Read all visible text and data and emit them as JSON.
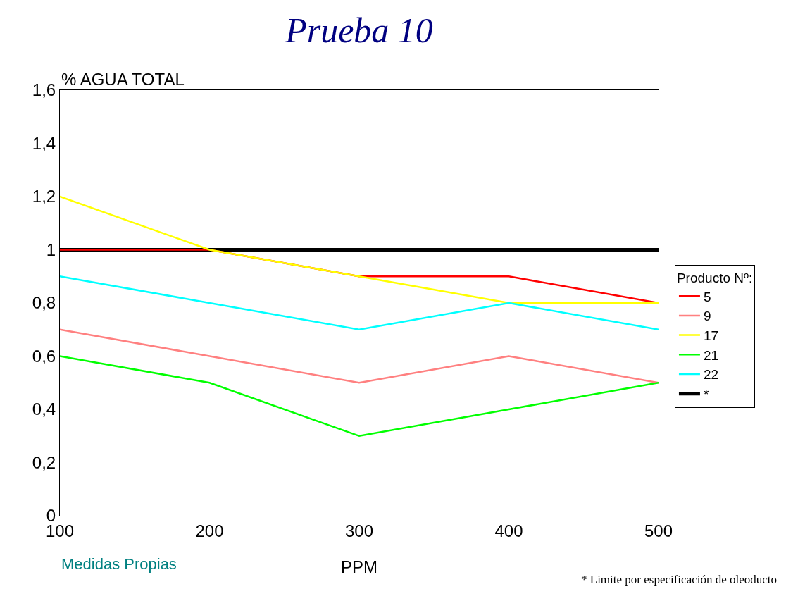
{
  "chart_data": {
    "type": "line",
    "title": "Prueba 10",
    "xlabel": "PPM",
    "ylabel": "% AGUA TOTAL",
    "legend_title": "Producto Nº:",
    "x": [
      100,
      200,
      300,
      400,
      500
    ],
    "series": [
      {
        "name": "5",
        "color": "#ff0000",
        "values": [
          1,
          1,
          0.9,
          0.9,
          0.8
        ]
      },
      {
        "name": "9",
        "color": "#ff8080",
        "values": [
          0.7,
          0.6,
          0.5,
          0.6,
          0.5
        ]
      },
      {
        "name": "17",
        "color": "#ffff00",
        "values": [
          1.2,
          1,
          0.9,
          0.8,
          0.8
        ]
      },
      {
        "name": "21",
        "color": "#00ff00",
        "values": [
          0.6,
          0.5,
          0.3,
          0.4,
          0.5
        ]
      },
      {
        "name": "22",
        "color": "#00ffff",
        "values": [
          0.9,
          0.8,
          0.7,
          0.8,
          0.7
        ]
      },
      {
        "name": "*",
        "color": "#000000",
        "values": [
          1,
          1,
          1,
          1,
          1
        ]
      }
    ],
    "xlim": [
      100,
      500
    ],
    "xticks": [
      100,
      200,
      300,
      400,
      500
    ],
    "ylim": [
      0,
      1.6
    ],
    "yticks": [
      0,
      {
        "value": 0.2,
        "label": "0,2"
      },
      {
        "value": 0.4,
        "label": "0,4"
      },
      {
        "value": 0.6,
        "label": "0,6"
      },
      {
        "value": 0.8,
        "label": "0,8"
      },
      1,
      {
        "value": 1.2,
        "label": "1,2"
      },
      {
        "value": 1.4,
        "label": "1,4"
      },
      {
        "value": 1.6,
        "label": "1,6"
      }
    ],
    "grid": false,
    "legend": "right",
    "marker": "none",
    "line_style": "solid",
    "annotations": [
      "Medidas Propias",
      "* Limite por especificación de oleoducto"
    ]
  }
}
